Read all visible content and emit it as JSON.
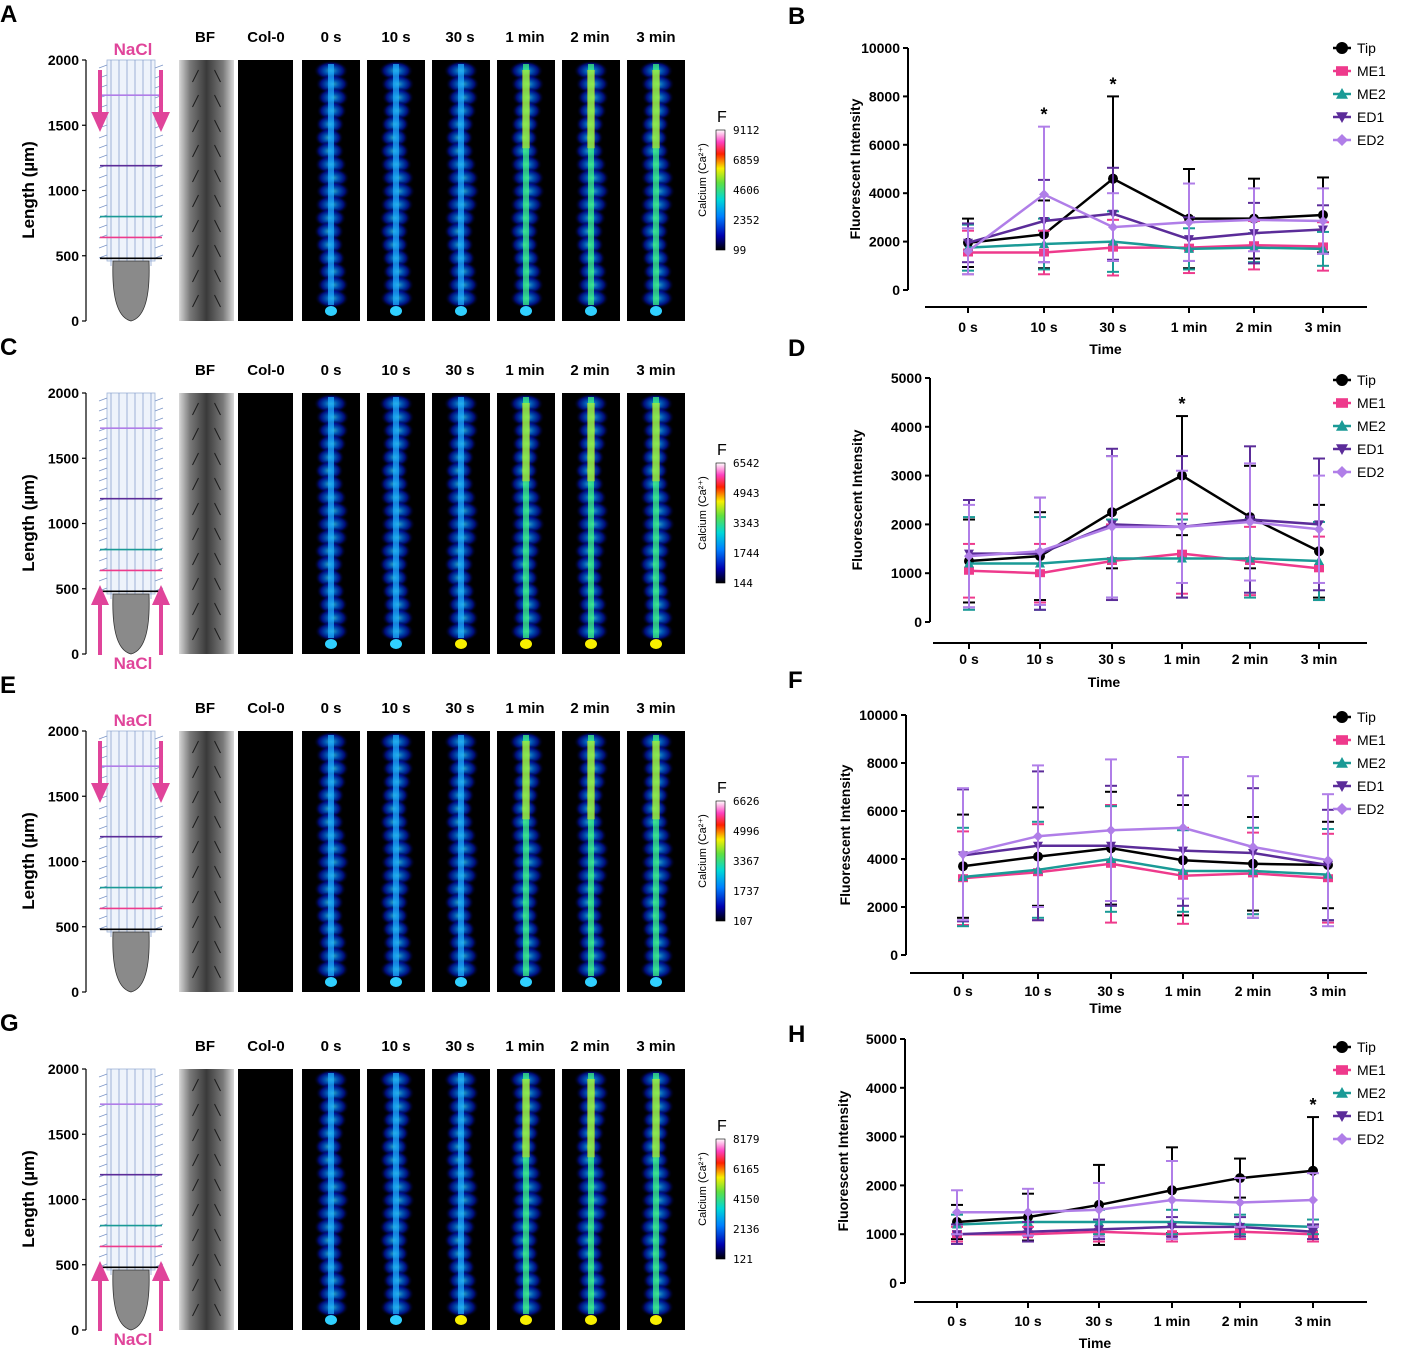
{
  "labels": {
    "time_headers": [
      "BF",
      "Col-0",
      "0 s",
      "10 s",
      "30 s",
      "1 min",
      "2 min",
      "3 min"
    ],
    "y_axis_label": "Length (µm)",
    "y_ticks": [
      "0",
      "500",
      "1000",
      "1500",
      "2000"
    ],
    "nacl": "NaCl",
    "colorbar_label": "Calcium (Ca²⁺)",
    "colorbar_title": "F",
    "chart_xlabel": "Time",
    "chart_ylabel": "Fluorescent Intensity",
    "significance": "*"
  },
  "colors": {
    "Tip": "#000000",
    "ME1": "#ee3a8c",
    "ME2": "#1a9a96",
    "ED1": "#5b2c99",
    "ED2": "#b07ee8",
    "nacl": "#e0449a"
  },
  "panels": [
    {
      "letter": "A",
      "nacl_position": "top",
      "colorbar_ticks": [
        "9112",
        "6859",
        "4606",
        "2352",
        "99"
      ]
    },
    {
      "letter": "C",
      "nacl_position": "bottom",
      "colorbar_ticks": [
        "6542",
        "4943",
        "3343",
        "1744",
        "144"
      ]
    },
    {
      "letter": "E",
      "nacl_position": "top",
      "colorbar_ticks": [
        "6626",
        "4996",
        "3367",
        "1737",
        "107"
      ]
    },
    {
      "letter": "G",
      "nacl_position": "bottom",
      "colorbar_ticks": [
        "8179",
        "6165",
        "4150",
        "2136",
        "121"
      ]
    }
  ],
  "chart_data": [
    {
      "letter": "B",
      "type": "line",
      "title": "",
      "xlabel": "Time",
      "ylabel": "Fluorescent Intensity",
      "categories": [
        "0 s",
        "10 s",
        "30 s",
        "1 min",
        "2 min",
        "3 min"
      ],
      "ylim": [
        0,
        10000
      ],
      "yticks": [
        0,
        2000,
        4000,
        6000,
        8000,
        10000
      ],
      "legend": "top-right",
      "series": [
        {
          "name": "Tip",
          "values": [
            1950,
            2300,
            4600,
            2950,
            2950,
            3100
          ],
          "err": [
            1000,
            1400,
            3400,
            2050,
            1650,
            1550
          ]
        },
        {
          "name": "ME1",
          "values": [
            1550,
            1550,
            1750,
            1750,
            1850,
            1800
          ],
          "err": [
            900,
            900,
            1150,
            1050,
            1000,
            1000
          ]
        },
        {
          "name": "ME2",
          "values": [
            1750,
            1900,
            2000,
            1700,
            1750,
            1700
          ],
          "err": [
            950,
            1050,
            1250,
            850,
            600,
            700
          ]
        },
        {
          "name": "ED1",
          "values": [
            1950,
            2850,
            3150,
            2100,
            2350,
            2500
          ],
          "err": [
            800,
            1700,
            1900,
            900,
            1250,
            1000
          ]
        },
        {
          "name": "ED2",
          "values": [
            1600,
            3950,
            2600,
            2800,
            2900,
            2850
          ],
          "err": [
            950,
            2800,
            1400,
            1600,
            1300,
            1350
          ]
        }
      ],
      "significance": [
        {
          "category": "10 s",
          "label": "*"
        },
        {
          "category": "30 s",
          "label": "*"
        }
      ]
    },
    {
      "letter": "D",
      "type": "line",
      "title": "",
      "xlabel": "Time",
      "ylabel": "Fluorescent Intensity",
      "categories": [
        "0 s",
        "10 s",
        "30 s",
        "1 min",
        "2 min",
        "3 min"
      ],
      "ylim": [
        0,
        5000
      ],
      "yticks": [
        0,
        1000,
        2000,
        3000,
        4000,
        5000
      ],
      "legend": "top-right",
      "series": [
        {
          "name": "Tip",
          "values": [
            1250,
            1350,
            2250,
            3000,
            2150,
            1450
          ],
          "err": [
            850,
            900,
            1150,
            1220,
            1050,
            950
          ]
        },
        {
          "name": "ME1",
          "values": [
            1050,
            1000,
            1250,
            1400,
            1250,
            1100
          ],
          "err": [
            550,
            600,
            750,
            820,
            700,
            650
          ]
        },
        {
          "name": "ME2",
          "values": [
            1200,
            1200,
            1300,
            1300,
            1300,
            1250
          ],
          "err": [
            950,
            950,
            800,
            800,
            800,
            800
          ]
        },
        {
          "name": "ED1",
          "values": [
            1400,
            1400,
            2000,
            1950,
            2100,
            2000
          ],
          "err": [
            1100,
            1150,
            1550,
            1450,
            1500,
            1350
          ]
        },
        {
          "name": "ED2",
          "values": [
            1350,
            1450,
            1950,
            1950,
            2050,
            1900
          ],
          "err": [
            1050,
            1100,
            1450,
            1150,
            1200,
            1100
          ]
        }
      ],
      "significance": [
        {
          "category": "1 min",
          "label": "*"
        }
      ]
    },
    {
      "letter": "F",
      "type": "line",
      "title": "",
      "xlabel": "Time",
      "ylabel": "Fluorescent Intensity",
      "categories": [
        "0 s",
        "10 s",
        "30 s",
        "1 min",
        "2 min",
        "3 min"
      ],
      "ylim": [
        0,
        10000
      ],
      "yticks": [
        0,
        2000,
        4000,
        6000,
        8000,
        10000
      ],
      "legend": "top-right",
      "series": [
        {
          "name": "Tip",
          "values": [
            3700,
            4100,
            4450,
            3950,
            3800,
            3750
          ],
          "err": [
            2150,
            2050,
            2350,
            2300,
            1950,
            1800
          ]
        },
        {
          "name": "ME1",
          "values": [
            3200,
            3450,
            3800,
            3300,
            3400,
            3200
          ],
          "err": [
            1950,
            2000,
            2450,
            2000,
            1700,
            1850
          ]
        },
        {
          "name": "ME2",
          "values": [
            3250,
            3550,
            4000,
            3500,
            3500,
            3350
          ],
          "err": [
            2050,
            2000,
            2200,
            1700,
            1800,
            1900
          ]
        },
        {
          "name": "ED1",
          "values": [
            4150,
            4550,
            4550,
            4350,
            4250,
            3750
          ],
          "err": [
            2750,
            3100,
            2500,
            2300,
            2700,
            2300
          ]
        },
        {
          "name": "ED2",
          "values": [
            4200,
            4950,
            5200,
            5300,
            4500,
            3950
          ],
          "err": [
            2750,
            2950,
            2950,
            2950,
            2950,
            2750
          ]
        }
      ],
      "significance": []
    },
    {
      "letter": "H",
      "type": "line",
      "title": "",
      "xlabel": "Time",
      "ylabel": "Fluorescent Intensity",
      "categories": [
        "0 s",
        "10 s",
        "30 s",
        "1 min",
        "2 min",
        "3 min"
      ],
      "ylim": [
        0,
        5000
      ],
      "yticks": [
        0,
        1000,
        2000,
        3000,
        4000,
        5000
      ],
      "legend": "top-right",
      "series": [
        {
          "name": "Tip",
          "values": [
            1250,
            1350,
            1600,
            1900,
            2150,
            2300
          ],
          "err": [
            350,
            480,
            820,
            880,
            400,
            1100
          ]
        },
        {
          "name": "ME1",
          "values": [
            1000,
            1000,
            1050,
            1000,
            1050,
            1000
          ],
          "err": [
            150,
            150,
            200,
            150,
            150,
            150
          ]
        },
        {
          "name": "ME2",
          "values": [
            1200,
            1250,
            1250,
            1250,
            1200,
            1150
          ],
          "err": [
            200,
            200,
            250,
            250,
            200,
            150
          ]
        },
        {
          "name": "ED1",
          "values": [
            1000,
            1050,
            1100,
            1150,
            1150,
            1050
          ],
          "err": [
            200,
            200,
            200,
            200,
            200,
            150
          ]
        },
        {
          "name": "ED2",
          "values": [
            1450,
            1450,
            1500,
            1700,
            1650,
            1700
          ],
          "err": [
            450,
            480,
            550,
            800,
            500,
            550
          ]
        }
      ],
      "significance": [
        {
          "category": "3 min",
          "label": "*"
        }
      ]
    }
  ]
}
